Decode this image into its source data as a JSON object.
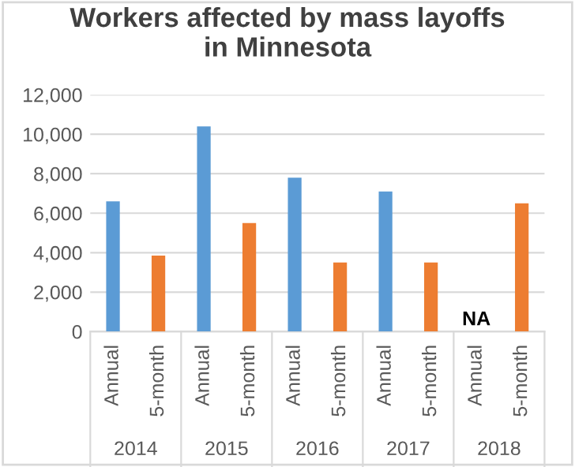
{
  "chart_data": {
    "type": "bar",
    "title": "Workers affected by mass layoffs\nin Minnesota",
    "categories": [
      "Annual",
      "5-month",
      "Annual",
      "5-month",
      "Annual",
      "5-month",
      "Annual",
      "5-month",
      "Annual",
      "5-month"
    ],
    "values": [
      6600,
      3850,
      10400,
      5500,
      7800,
      3500,
      7100,
      3500,
      null,
      6500
    ],
    "colors": [
      "#5b9bd5",
      "#ed7d31",
      "#5b9bd5",
      "#ed7d31",
      "#5b9bd5",
      "#ed7d31",
      "#5b9bd5",
      "#ed7d31",
      "#5b9bd5",
      "#ed7d31"
    ],
    "annotations": [
      "2014",
      "2015",
      "2016",
      "2017",
      "2018",
      "NA"
    ],
    "ylim": [
      0,
      12000
    ],
    "yticks": [
      {
        "value": 0,
        "label": "0"
      },
      {
        "value": 2000,
        "label": "2,000"
      },
      {
        "value": 4000,
        "label": "4,000"
      },
      {
        "value": 6000,
        "label": "6,000"
      },
      {
        "value": 8000,
        "label": "8,000"
      },
      {
        "value": 10000,
        "label": "10,000"
      },
      {
        "value": 12000,
        "label": "12,000"
      }
    ],
    "grid": "y"
  }
}
